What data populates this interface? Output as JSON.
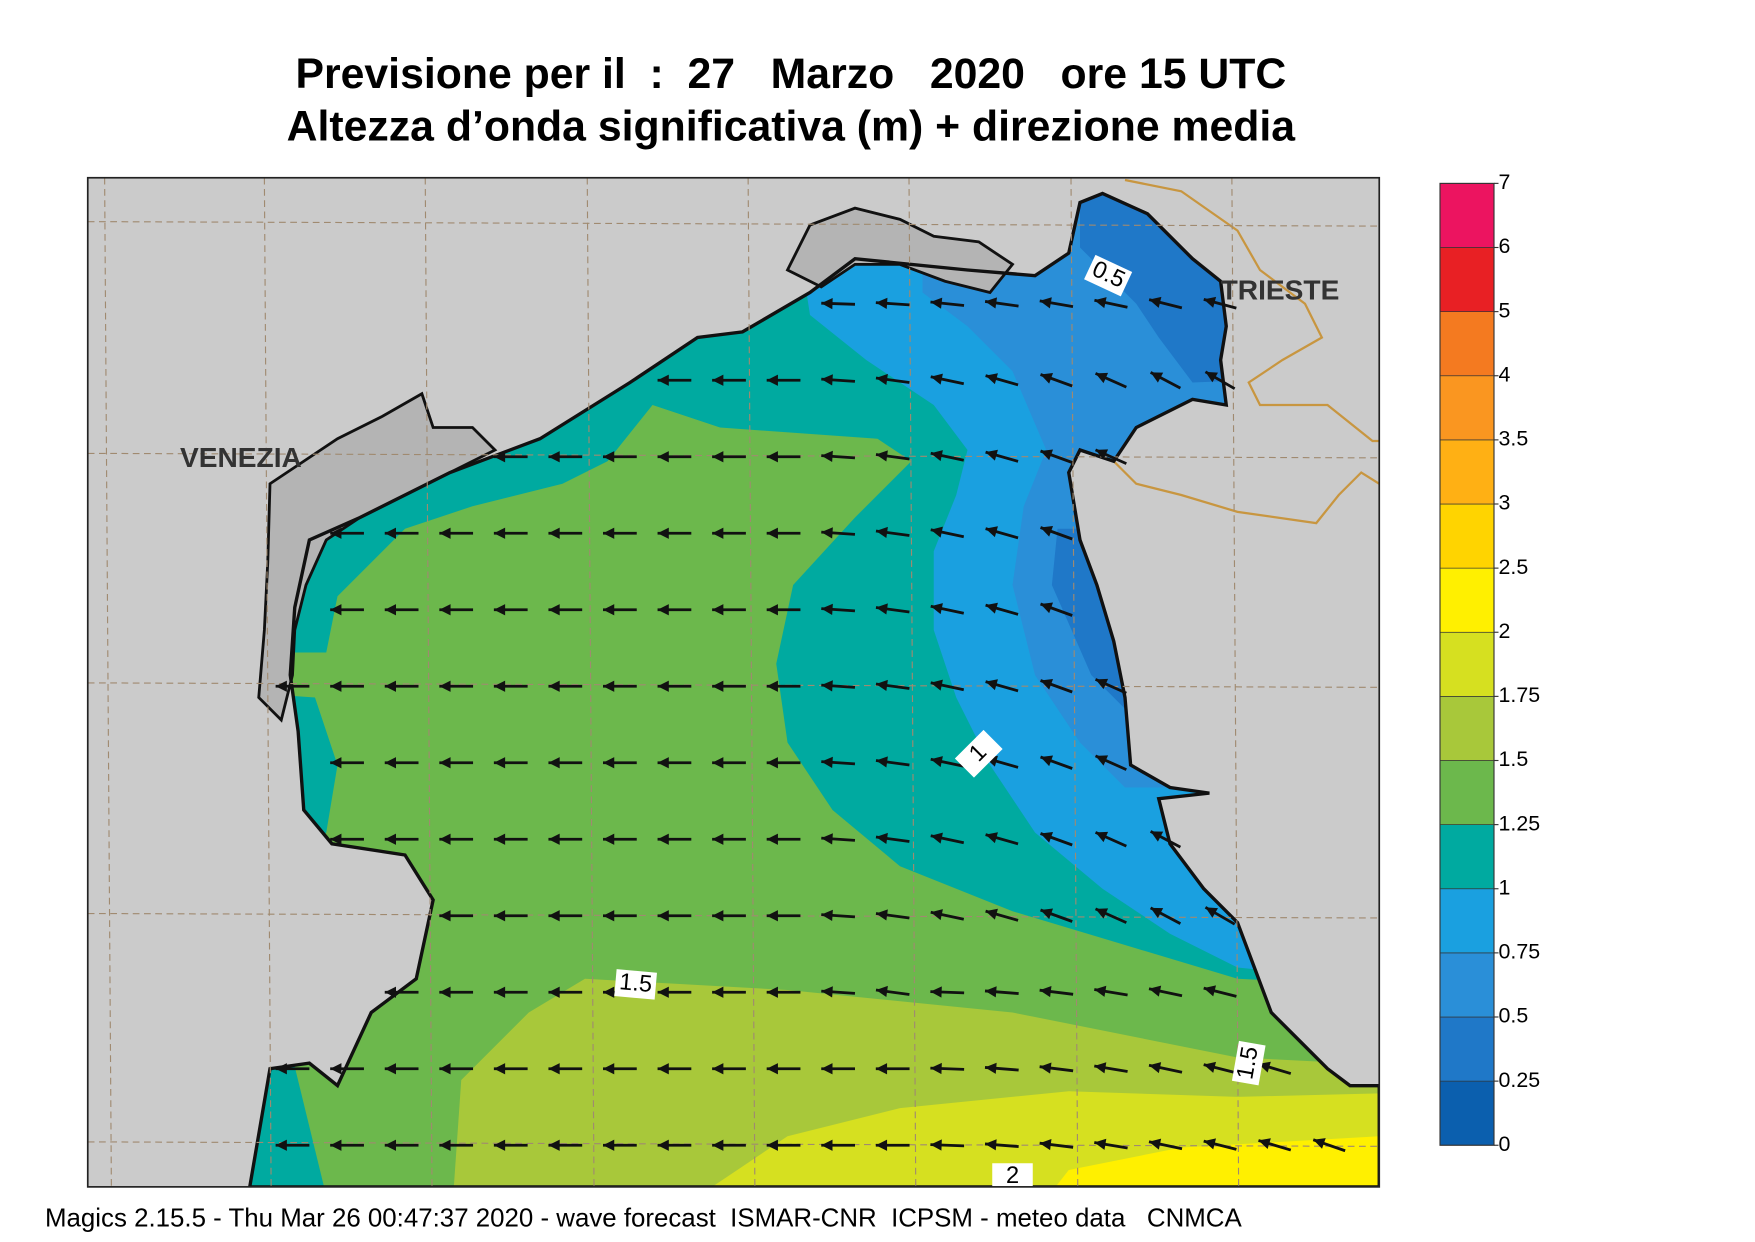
{
  "title": "Previsione per il  :  27   Marzo   2020   ore 15 UTC",
  "subtitle": "Altezza d’onda significativa (m) + direzione media",
  "places": [
    "VENEZIA",
    "TRIESTE"
  ],
  "contours": [
    0.5,
    1,
    1.5,
    1.5,
    2
  ],
  "colorbar": {
    "ticks": [
      0,
      0.25,
      0.5,
      0.75,
      1,
      1.25,
      1.5,
      1.75,
      2,
      2.5,
      3,
      3.5,
      4,
      5,
      6,
      7
    ],
    "colors": [
      "#0b5fae",
      "#1f78c8",
      "#2a8fd8",
      "#1aa0e0",
      "#00aaa0",
      "#6cb84c",
      "#a8c83a",
      "#d6e020",
      "#fff000",
      "#ffd400",
      "#ffb014",
      "#fa9620",
      "#f47a20",
      "#e82024",
      "#ec1460"
    ]
  },
  "footer": "Magics 2.15.5 - Thu Mar 26 00:47:37 2020 - wave forecast  ISMAR-CNR  ICPSM - meteo data   CNMCA"
}
